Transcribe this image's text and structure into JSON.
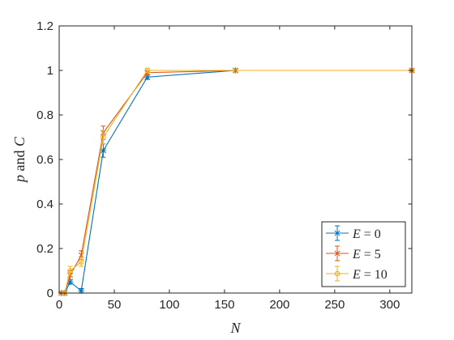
{
  "chart_data": {
    "type": "line",
    "title": "",
    "xlabel": "N",
    "ylabel_parts": {
      "var1": "p",
      "word": " and ",
      "var2": "C"
    },
    "xlim": [
      0,
      320
    ],
    "ylim": [
      0,
      1.2
    ],
    "xticks": [
      0,
      50,
      100,
      150,
      200,
      250,
      300
    ],
    "xtick_labels": [
      "0",
      "50",
      "100",
      "150",
      "200",
      "250",
      "300"
    ],
    "yticks": [
      0,
      0.2,
      0.4,
      0.6,
      0.8,
      1,
      1.2
    ],
    "ytick_labels": [
      "0",
      "0.2",
      "0.4",
      "0.6",
      "0.8",
      "1",
      "1.2"
    ],
    "grid": false,
    "legend_position": "bottom-right",
    "x": [
      2,
      5,
      10,
      20,
      40,
      80,
      160,
      320
    ],
    "series": [
      {
        "name": "E = 0",
        "marker": "asterisk",
        "color": "#0072BD",
        "values": [
          0,
          0,
          0.05,
          0.01,
          0.64,
          0.97,
          1,
          1
        ],
        "errors": [
          0,
          0,
          0.01,
          0.01,
          0.03,
          0.01,
          0,
          0
        ]
      },
      {
        "name": "E = 5",
        "marker": "x",
        "color": "#D95319",
        "values": [
          0,
          0,
          0.08,
          0.17,
          0.72,
          0.99,
          1,
          1
        ],
        "errors": [
          0,
          0,
          0.02,
          0.02,
          0.03,
          0.01,
          0,
          0
        ]
      },
      {
        "name": "E = 10",
        "marker": "circle",
        "color": "#EDB120",
        "values": [
          0,
          0,
          0.1,
          0.14,
          0.7,
          1,
          1,
          1
        ],
        "errors": [
          0,
          0,
          0.02,
          0.02,
          0.03,
          0.01,
          0,
          0
        ]
      }
    ]
  }
}
